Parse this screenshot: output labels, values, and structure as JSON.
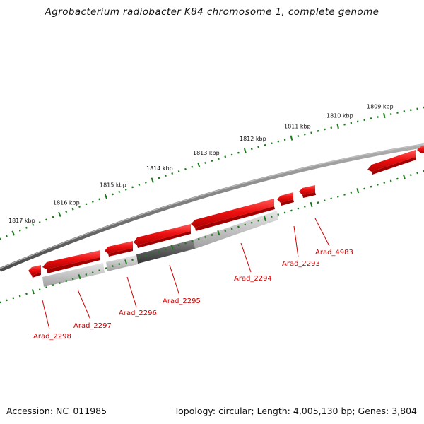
{
  "title": "Agrobacterium radiobacter K84 chromosome 1, complete genome",
  "footer": {
    "accession": "Accession: NC_011985",
    "summary": "Topology: circular; Length: 4,005,130 bp; Genes: 3,804"
  },
  "colors": {
    "genome_line": "#808080",
    "tick": "#1a7a1a",
    "gene_forward": "#ee1111",
    "gene_dark": "#c00000",
    "cds_light": "#bdbdbd",
    "cds_dark": "#555555",
    "label": "#cc0000"
  },
  "kbp_ticks": [
    {
      "label": "1817 kbp"
    },
    {
      "label": "1816 kbp"
    },
    {
      "label": "1815 kbp"
    },
    {
      "label": "1814 kbp"
    },
    {
      "label": "1813 kbp"
    },
    {
      "label": "1812 kbp"
    },
    {
      "label": "1811 kbp"
    },
    {
      "label": "1810 kbp"
    },
    {
      "label": "1809 kbp"
    }
  ],
  "genes": [
    {
      "name": "Arad_2298",
      "strand": "reverse"
    },
    {
      "name": "Arad_2297",
      "strand": "reverse"
    },
    {
      "name": "Arad_2296",
      "strand": "reverse"
    },
    {
      "name": "Arad_2295",
      "strand": "reverse"
    },
    {
      "name": "Arad_2294",
      "strand": "reverse"
    },
    {
      "name": "Arad_2293",
      "strand": "reverse"
    },
    {
      "name": "Arad_4983",
      "strand": "reverse"
    }
  ]
}
